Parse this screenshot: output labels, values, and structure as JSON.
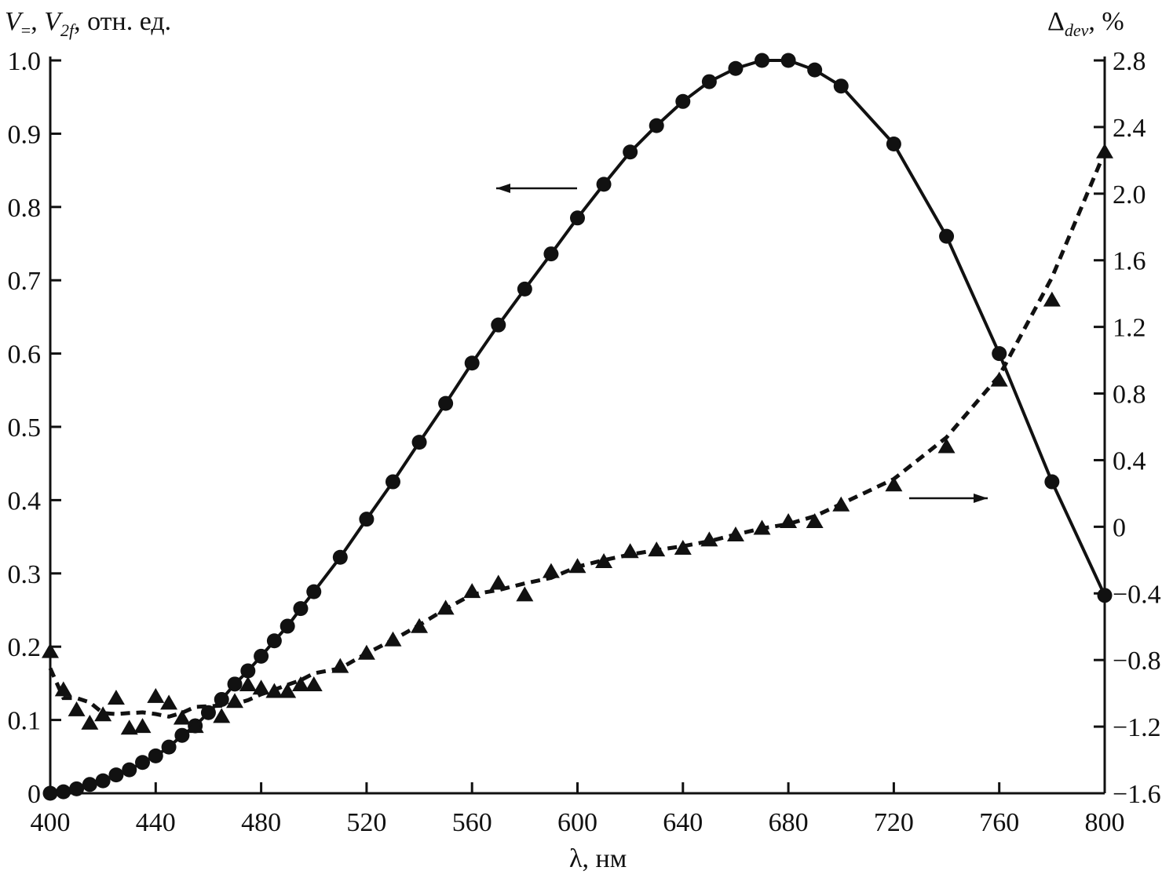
{
  "chart_data": {
    "type": "line",
    "xlabel": {
      "symbol": "λ",
      "rest": ", нм"
    },
    "ylabel_left": {
      "v1": "V",
      "v1_sub": "=",
      "sep": ", ",
      "v2": "V",
      "v2_sub": "2f",
      "rest": ", отн. ед."
    },
    "ylabel_right": {
      "symbol": "Δ",
      "sub": "dev",
      "rest": ", %"
    },
    "xlim": [
      400,
      800
    ],
    "ylim_left": [
      0,
      1.0
    ],
    "ylim_right": [
      -1.6,
      2.8
    ],
    "x_ticks": [
      "400",
      "440",
      "480",
      "520",
      "560",
      "600",
      "640",
      "680",
      "720",
      "760",
      "800"
    ],
    "y_left_ticks": [
      "0",
      "0.1",
      "0.2",
      "0.3",
      "0.4",
      "0.5",
      "0.6",
      "0.7",
      "0.8",
      "0.9",
      "1.0"
    ],
    "y_right_ticks": [
      "−1.6",
      "−1.2",
      "−0.8",
      "−0.4",
      "0",
      "0.4",
      "0.8",
      "1.2",
      "1.6",
      "2.0",
      "2.4",
      "2.8"
    ],
    "grid": false,
    "series": [
      {
        "axis": "left",
        "marker": "circle",
        "line": "solid",
        "color": "#111111",
        "x": [
          400,
          405,
          410,
          415,
          420,
          425,
          430,
          435,
          440,
          445,
          450,
          455,
          460,
          465,
          470,
          475,
          480,
          485,
          490,
          495,
          500,
          510,
          520,
          530,
          540,
          550,
          560,
          570,
          580,
          590,
          600,
          610,
          620,
          630,
          640,
          650,
          660,
          670,
          680,
          690,
          700,
          720,
          740,
          760,
          780,
          800
        ],
        "y": [
          0.0,
          0.002,
          0.006,
          0.012,
          0.017,
          0.025,
          0.032,
          0.042,
          0.051,
          0.063,
          0.079,
          0.092,
          0.11,
          0.128,
          0.149,
          0.167,
          0.187,
          0.208,
          0.228,
          0.252,
          0.275,
          0.322,
          0.374,
          0.425,
          0.479,
          0.532,
          0.587,
          0.639,
          0.688,
          0.736,
          0.785,
          0.831,
          0.875,
          0.911,
          0.944,
          0.971,
          0.989,
          1.0,
          1.0,
          0.987,
          0.965,
          0.886,
          0.76,
          0.6,
          0.425,
          0.27
        ]
      },
      {
        "axis": "right",
        "marker": "triangle",
        "line": "dashed",
        "color": "#111111",
        "x": [
          400,
          405,
          410,
          415,
          420,
          425,
          430,
          435,
          440,
          445,
          450,
          455,
          465,
          470,
          475,
          480,
          485,
          490,
          495,
          500,
          510,
          520,
          530,
          540,
          550,
          560,
          570,
          580,
          590,
          600,
          610,
          620,
          630,
          640,
          650,
          660,
          670,
          680,
          690,
          700,
          720,
          740,
          760,
          780,
          800
        ],
        "y": [
          -0.75,
          -0.98,
          -1.1,
          -1.18,
          -1.13,
          -1.03,
          -1.21,
          -1.2,
          -1.02,
          -1.06,
          -1.15,
          -1.2,
          -1.14,
          -1.05,
          -0.95,
          -0.97,
          -0.99,
          -0.99,
          -0.95,
          -0.95,
          -0.84,
          -0.76,
          -0.68,
          -0.6,
          -0.49,
          -0.39,
          -0.34,
          -0.41,
          -0.27,
          -0.24,
          -0.21,
          -0.15,
          -0.14,
          -0.13,
          -0.08,
          -0.05,
          -0.01,
          0.03,
          0.03,
          0.13,
          0.25,
          0.48,
          0.88,
          1.36,
          2.25
        ]
      }
    ],
    "annotations": [
      {
        "type": "arrow",
        "direction": "left",
        "points_to": "left axis",
        "series": 0
      },
      {
        "type": "arrow",
        "direction": "right",
        "points_to": "right axis",
        "series": 1
      }
    ]
  }
}
